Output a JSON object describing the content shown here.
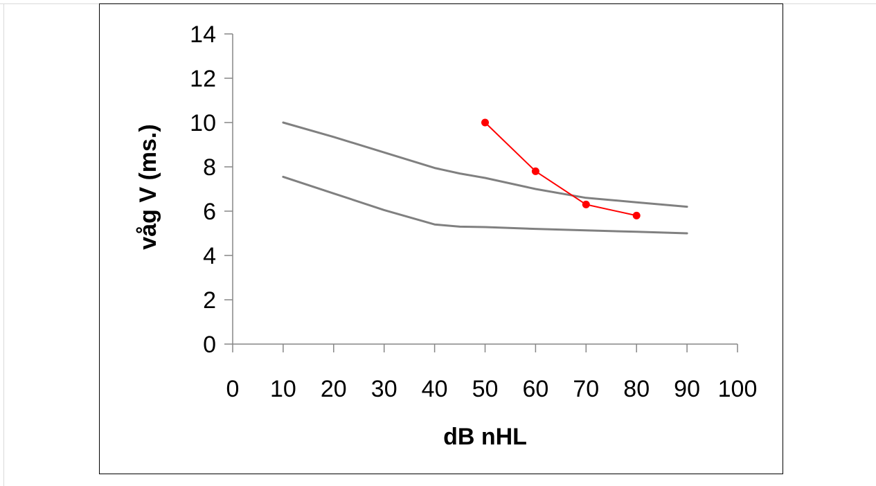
{
  "chart_data": {
    "type": "line",
    "title": "",
    "xlabel": "dB nHL",
    "ylabel": "våg V (ms.)",
    "xlim": [
      0,
      100
    ],
    "ylim": [
      0,
      14
    ],
    "x_ticks": [
      0,
      10,
      20,
      30,
      40,
      50,
      60,
      70,
      80,
      90,
      100
    ],
    "x_tick_labels": [
      "0",
      "10",
      "20",
      "30",
      "40",
      "50",
      "60",
      "70",
      "80",
      "90",
      "100"
    ],
    "y_ticks": [
      0,
      2,
      4,
      6,
      8,
      10,
      12,
      14
    ],
    "y_tick_labels": [
      "0",
      "2",
      "4",
      "6",
      "8",
      "10",
      "12",
      "14"
    ],
    "grid": false,
    "legend": "none",
    "series": [
      {
        "color": "#808080",
        "markers": false,
        "x": [
          10,
          20,
          30,
          40,
          45,
          50,
          60,
          70,
          80,
          90
        ],
        "y": [
          10.0,
          9.35,
          8.65,
          7.95,
          7.7,
          7.5,
          7.0,
          6.6,
          6.4,
          6.2
        ]
      },
      {
        "color": "#808080",
        "markers": false,
        "x": [
          10,
          20,
          30,
          40,
          45,
          50,
          60,
          70,
          80,
          90
        ],
        "y": [
          7.55,
          6.8,
          6.05,
          5.4,
          5.3,
          5.28,
          5.2,
          5.13,
          5.07,
          5.0
        ]
      },
      {
        "color": "#ff0000",
        "markers": true,
        "x": [
          50,
          60,
          70,
          80
        ],
        "y": [
          10.0,
          7.8,
          6.3,
          5.8
        ]
      }
    ]
  }
}
